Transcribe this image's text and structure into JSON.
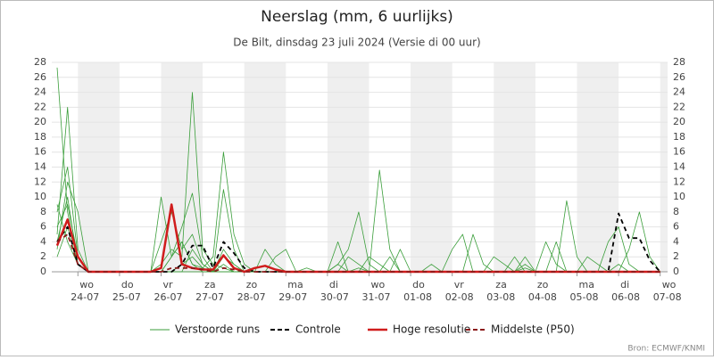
{
  "chart_data": {
    "type": "line",
    "title": "Neerslag (mm, 6 uurlijks)",
    "subtitle": "De Bilt, dinsdag 23 juli 2024 (Versie di 00 uur)",
    "source": "Bron: ECMWF/KNMI",
    "categories": [
      null,
      null,
      "wo 24-07",
      null,
      null,
      null,
      "do 25-07",
      null,
      null,
      null,
      "vr 26-07",
      null,
      null,
      null,
      "za 27-07",
      null,
      null,
      null,
      "zo 28-07",
      null,
      null,
      null,
      "ma 29-07",
      null,
      null,
      null,
      "di 30-07",
      null,
      null,
      null,
      "wo 31-07",
      null,
      null,
      null,
      "do 01-08",
      null,
      null,
      null,
      "vr 02-08",
      null,
      null,
      null,
      "za 03-08",
      null,
      null,
      null,
      "zo 04-08",
      null,
      null,
      null,
      "ma 05-08",
      null,
      null,
      null,
      "di 06-08",
      null,
      null,
      null,
      "wo 07-08"
    ],
    "ylim": [
      0,
      28
    ],
    "yticks": [
      0,
      2,
      4,
      6,
      8,
      10,
      12,
      14,
      16,
      18,
      20,
      22,
      24,
      26,
      28
    ],
    "series": [
      {
        "name": "Verstoorde runs",
        "color": "#3a9e3a",
        "members": [
          [
            27.3,
            8,
            1,
            0,
            0,
            0,
            0,
            0,
            0,
            0,
            0,
            2,
            4,
            1,
            0.5,
            0,
            3,
            1,
            0,
            0,
            0,
            0,
            0,
            0,
            0.5,
            0,
            0,
            1,
            0,
            0.5,
            0,
            0,
            0,
            0,
            0,
            0,
            0,
            0,
            0,
            0,
            0,
            0,
            0,
            0,
            0,
            0.5,
            0,
            0,
            0,
            0,
            0,
            0,
            0,
            0,
            1,
            0,
            0,
            0,
            0
          ],
          [
            5,
            22,
            3,
            0,
            0,
            0,
            0,
            0,
            0,
            0,
            1,
            3,
            2,
            24,
            3,
            1,
            0.5,
            0,
            0,
            0,
            0,
            0,
            0,
            0,
            0,
            0,
            0,
            4,
            0,
            0,
            0,
            0,
            2,
            0,
            0,
            0,
            0,
            0,
            0,
            0,
            0,
            0,
            0,
            0,
            0,
            0,
            0,
            0,
            0,
            0,
            0,
            2,
            1,
            0,
            0,
            0,
            0,
            0,
            0
          ],
          [
            8,
            14,
            2,
            0,
            0,
            0,
            0,
            0,
            0,
            0,
            0,
            0,
            1,
            2,
            0.5,
            2,
            16,
            5,
            1,
            0,
            0,
            0,
            0,
            0,
            0,
            0,
            0,
            0,
            0,
            0,
            2,
            1,
            0,
            0,
            0,
            0,
            0,
            0,
            0,
            0,
            0,
            0,
            0,
            0,
            0,
            1,
            0,
            0,
            4,
            0,
            0,
            0,
            0,
            0,
            0,
            0,
            0,
            0,
            0
          ],
          [
            4,
            10,
            1,
            0,
            0,
            0,
            0,
            0,
            0,
            0,
            0,
            0,
            0,
            0,
            0,
            0,
            1,
            0,
            0,
            0,
            0,
            0,
            0,
            0,
            0,
            0,
            0,
            0,
            2,
            1,
            0,
            13.6,
            3,
            0,
            0,
            0,
            0,
            0,
            0,
            0,
            0,
            0,
            2,
            1,
            0,
            0,
            0,
            0,
            0,
            0,
            0,
            0,
            0,
            0,
            0,
            0,
            0,
            0,
            0
          ],
          [
            3,
            12,
            8,
            0,
            0,
            0,
            0,
            0,
            0,
            0,
            10,
            2,
            4,
            1,
            0,
            0,
            0,
            0,
            0,
            0,
            0,
            0,
            0,
            0,
            0,
            0,
            0,
            1,
            3,
            8,
            1,
            0,
            0,
            0,
            0,
            0,
            0,
            0,
            3,
            5,
            0,
            0,
            0,
            0,
            0,
            0,
            0,
            0,
            0,
            0,
            0,
            0,
            0,
            0,
            0,
            0,
            0,
            0,
            0
          ],
          [
            2,
            6,
            1,
            0,
            0,
            0,
            0,
            0,
            0,
            0,
            0,
            0,
            0,
            3,
            1,
            0,
            0,
            0,
            0,
            0,
            0,
            0,
            0,
            0,
            0,
            0,
            0,
            0,
            0,
            0,
            0,
            0,
            0,
            0,
            0,
            0,
            1,
            0,
            0,
            0,
            0,
            0,
            0,
            0,
            0,
            2,
            0,
            0,
            0,
            9.5,
            2,
            0,
            0,
            0,
            0,
            3,
            8,
            2,
            0
          ],
          [
            6,
            9,
            2,
            0,
            0,
            0,
            0,
            0,
            0,
            0,
            4,
            8,
            3,
            5,
            1,
            0,
            11,
            3,
            0,
            0,
            3,
            1,
            0,
            0,
            0,
            0,
            0,
            0,
            0,
            0,
            0,
            0,
            0,
            0,
            0,
            0,
            0,
            0,
            0,
            0,
            5,
            1,
            0,
            0,
            0,
            0,
            0,
            0,
            0,
            0,
            0,
            0,
            0,
            0,
            0,
            0,
            0,
            0,
            0
          ],
          [
            9,
            4,
            1,
            0,
            0,
            0,
            0,
            0,
            0,
            0,
            0,
            2,
            6,
            10.5,
            2,
            0,
            2,
            1,
            0,
            0,
            0,
            2,
            3,
            0,
            0,
            0,
            0,
            0,
            0,
            0,
            0,
            0,
            0,
            3,
            0,
            0,
            0,
            0,
            0,
            0,
            0,
            0,
            0,
            0,
            2,
            0,
            0,
            4,
            1,
            0,
            0,
            0,
            0,
            4,
            6,
            1,
            0,
            0,
            0
          ]
        ]
      },
      {
        "name": "Controle",
        "color": "#000000",
        "dashed": true,
        "values": [
          4,
          6,
          1,
          0,
          0,
          0,
          0,
          0,
          0,
          0,
          0,
          0,
          1,
          3.5,
          3.5,
          0.5,
          4,
          2.5,
          0.5,
          0,
          0,
          0,
          0,
          0,
          0,
          0,
          0,
          0,
          0,
          0,
          0,
          0,
          0,
          0,
          0,
          0,
          0,
          0,
          0,
          0,
          0,
          0,
          0,
          0,
          0,
          0,
          0,
          0,
          0,
          0,
          0,
          0,
          0,
          0,
          7.8,
          4.5,
          4.5,
          1.5,
          0
        ]
      },
      {
        "name": "Hoge resolutie",
        "color": "#d01c1c",
        "values": [
          3.5,
          7,
          2,
          0,
          0,
          0,
          0,
          0,
          0,
          0,
          0.5,
          9,
          1,
          0.5,
          0.3,
          0.3,
          2.2,
          0.5,
          0,
          0.5,
          0.8,
          0.3,
          0,
          0,
          0,
          0,
          0,
          0,
          0,
          0,
          0,
          0,
          0,
          0,
          0,
          0,
          0,
          0,
          0,
          0,
          0,
          0,
          0,
          0,
          0,
          0,
          0,
          0,
          0,
          0,
          0,
          0,
          0,
          0,
          0,
          0,
          0,
          0,
          0
        ]
      },
      {
        "name": "Middelste (P50)",
        "color": "#8b1a1a",
        "dashed": true,
        "values": [
          4,
          5,
          1,
          0,
          0,
          0,
          0,
          0,
          0,
          0,
          0,
          0.5,
          0.5,
          0.5,
          0.3,
          0,
          0.5,
          0.3,
          0,
          0,
          0,
          0,
          0,
          0,
          0,
          0,
          0,
          0,
          0,
          0,
          0,
          0,
          0,
          0,
          0,
          0,
          0,
          0,
          0,
          0,
          0,
          0,
          0,
          0,
          0,
          0,
          0,
          0,
          0,
          0,
          0,
          0,
          0,
          0,
          0,
          0,
          0,
          0,
          0
        ]
      }
    ]
  }
}
